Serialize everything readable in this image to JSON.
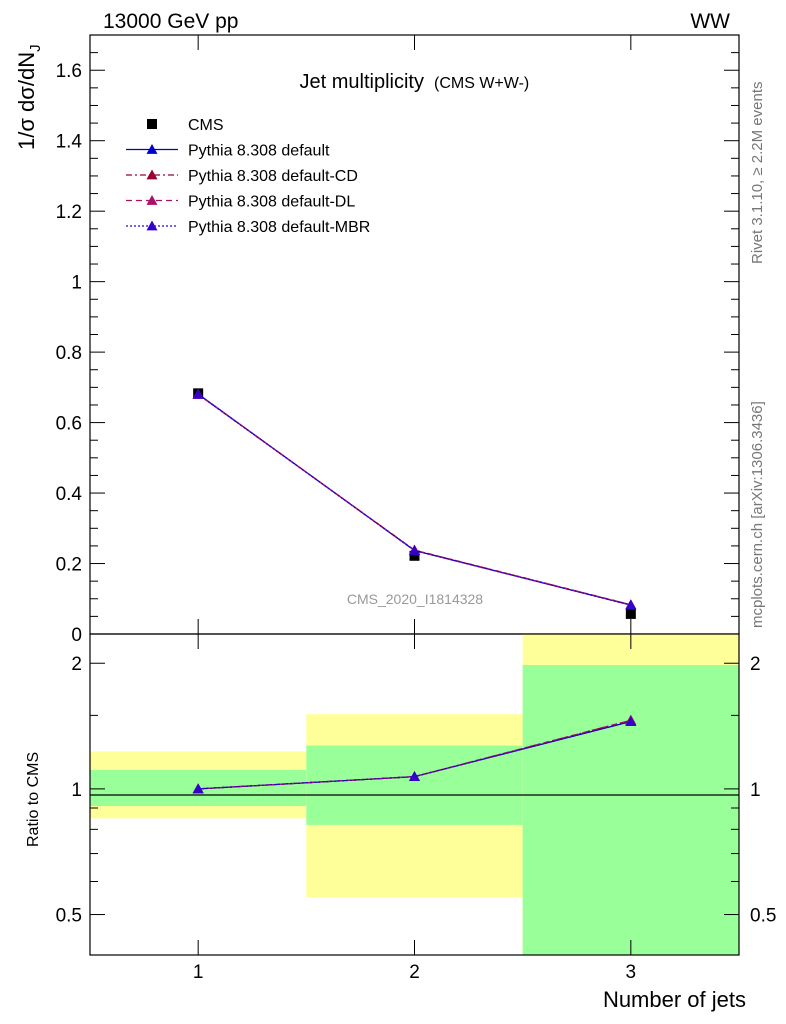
{
  "header": {
    "left": "13000 GeV pp",
    "right": "WW"
  },
  "side_labels": {
    "rivet": "Rivet 3.1.10, ≥ 2.2M events",
    "mcplots": "mcplots.cern.ch [arXiv:1306.3436]"
  },
  "chart_data": [
    {
      "type": "line",
      "title": "Jet multiplicity",
      "subtitle": "(CMS W+W-)",
      "watermark": "CMS_2020_I1814328",
      "ylabel": "1/σ dσ/dN",
      "ylabel_sub": "J",
      "x": [
        1,
        2,
        3
      ],
      "xlim": [
        0.5,
        3.5
      ],
      "ylim": [
        0,
        1.7
      ],
      "yticks": [
        0,
        0.2,
        0.4,
        0.6,
        0.8,
        1,
        1.2,
        1.4,
        1.6
      ],
      "ytick_labels": [
        "0",
        "0.2",
        "0.4",
        "0.6",
        "0.8",
        "1",
        "1.2",
        "1.4",
        "1.6"
      ],
      "legend_position": "top-left",
      "series": [
        {
          "name": "CMS",
          "values": [
            0.683,
            0.222,
            0.057
          ],
          "marker": "square",
          "color": "#000000",
          "line": "none"
        },
        {
          "name": "Pythia 8.308 default",
          "values": [
            0.681,
            0.237,
            0.082
          ],
          "marker": "triangle",
          "color": "#0000cc",
          "line": "solid"
        },
        {
          "name": "Pythia 8.308 default-CD",
          "values": [
            0.68,
            0.238,
            0.083
          ],
          "marker": "triangle",
          "color": "#990033",
          "line": "dashdot"
        },
        {
          "name": "Pythia 8.308 default-DL",
          "values": [
            0.68,
            0.238,
            0.083
          ],
          "marker": "triangle",
          "color": "#aa1166",
          "line": "dashed"
        },
        {
          "name": "Pythia 8.308 default-MBR",
          "values": [
            0.68,
            0.237,
            0.082
          ],
          "marker": "triangle",
          "color": "#3300cc",
          "line": "dotted"
        }
      ]
    },
    {
      "type": "line",
      "ylabel": "Ratio to CMS",
      "xlabel": "Number of jets",
      "x": [
        1,
        2,
        3
      ],
      "xlim": [
        0.5,
        3.5
      ],
      "ylim": [
        0.4,
        2.35
      ],
      "yscale": "log",
      "xtick_labels": [
        "1",
        "2",
        "3"
      ],
      "ytick_labels": [
        "0.5",
        "1",
        "2"
      ],
      "yticks": [
        0.5,
        1,
        2
      ],
      "reference_line": 1,
      "bands": [
        {
          "x_range": [
            0.5,
            1.5
          ],
          "inner": [
            0.91,
            1.11
          ],
          "outer": [
            0.85,
            1.23
          ]
        },
        {
          "x_range": [
            1.5,
            2.5
          ],
          "inner": [
            0.82,
            1.27
          ],
          "outer": [
            0.55,
            1.51
          ]
        },
        {
          "x_range": [
            2.5,
            3.5
          ],
          "inner": [
            0.4,
            1.98
          ],
          "outer": [
            0.4,
            2.35
          ]
        }
      ],
      "band_colors": {
        "inner": "#99ff99",
        "outer": "#ffff99"
      },
      "series": [
        {
          "name": "Pythia 8.308 default",
          "values": [
            1.0,
            1.07,
            1.45
          ],
          "color": "#0000cc"
        },
        {
          "name": "Pythia 8.308 default-CD",
          "values": [
            1.0,
            1.07,
            1.46
          ],
          "color": "#990033"
        },
        {
          "name": "Pythia 8.308 default-DL",
          "values": [
            1.0,
            1.07,
            1.46
          ],
          "color": "#aa1166"
        },
        {
          "name": "Pythia 8.308 default-MBR",
          "values": [
            1.0,
            1.07,
            1.45
          ],
          "color": "#3300cc"
        }
      ]
    }
  ]
}
